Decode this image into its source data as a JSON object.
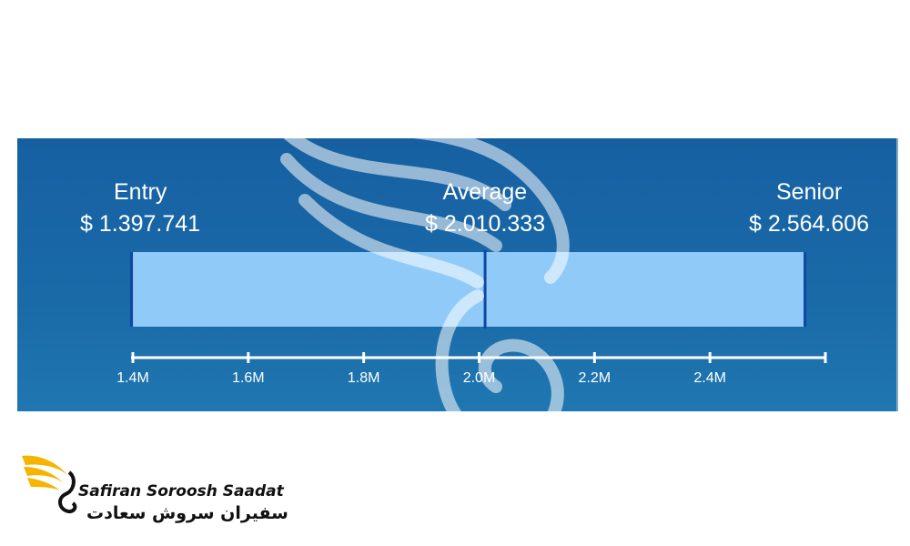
{
  "chart_data": {
    "type": "bar",
    "labels": [
      {
        "name": "Entry",
        "value": "$ 1.397.741"
      },
      {
        "name": "Average",
        "value": "$ 2.010.333"
      },
      {
        "name": "Senior",
        "value": "$ 2.564.606"
      }
    ],
    "range": {
      "min": 1397741,
      "average": 2010333,
      "max": 2564606
    },
    "xlim": [
      1.4,
      2.6
    ],
    "xticks": [
      "1.4M",
      "1.6M",
      "1.8M",
      "2.0M",
      "2.2M",
      "2.4M"
    ],
    "xtick_values": [
      1.4,
      1.6,
      1.8,
      2.0,
      2.2,
      2.4
    ],
    "colors": {
      "panel": "#1a64a5",
      "bar": "#90caf9",
      "bar_border": "#0d47a1",
      "text": "#ffffff"
    }
  },
  "logo": {
    "text_en": "Safiran Soroosh Saadat",
    "text_fa": "سفیران سروش سعادت"
  }
}
